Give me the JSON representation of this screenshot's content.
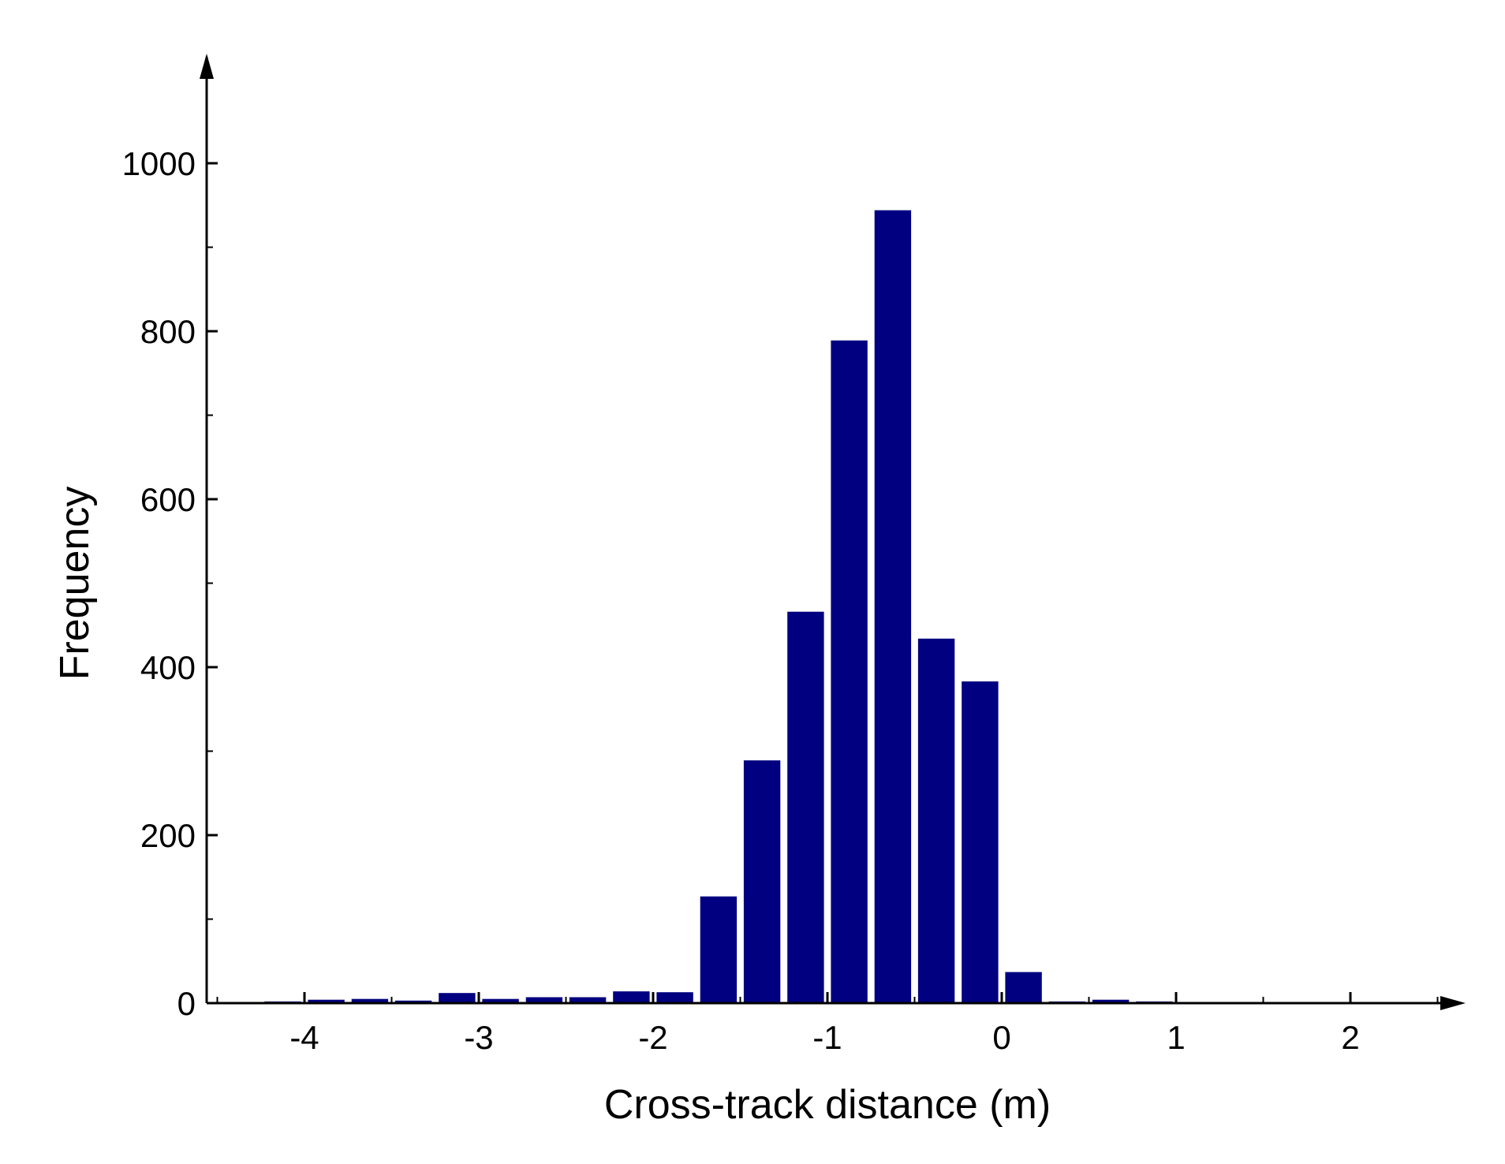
{
  "chart_data": {
    "type": "bar",
    "xlabel": "Cross-track distance (m)",
    "ylabel": "Frequency",
    "xlim": [
      -4.55,
      2.55
    ],
    "ylim": [
      0,
      1100
    ],
    "x_ticks": [
      -4,
      -3,
      -2,
      -1,
      0,
      1,
      2
    ],
    "y_ticks": [
      0,
      200,
      400,
      600,
      800,
      1000
    ],
    "bin_width": 0.25,
    "x": [
      -4.375,
      -4.125,
      -3.875,
      -3.625,
      -3.375,
      -3.125,
      -2.875,
      -2.625,
      -2.375,
      -2.125,
      -1.875,
      -1.625,
      -1.375,
      -1.125,
      -0.875,
      -0.625,
      -0.375,
      -0.125,
      0.125,
      0.375,
      0.625,
      0.875,
      1.125,
      1.375,
      1.625,
      1.875,
      2.125,
      2.375
    ],
    "values": [
      1,
      2,
      4,
      5,
      3,
      12,
      5,
      7,
      7,
      14,
      13,
      127,
      289,
      466,
      789,
      944,
      434,
      383,
      37,
      2,
      4,
      2,
      1,
      1,
      1,
      1,
      1,
      1
    ],
    "bar_color": "#000080",
    "grid": false
  }
}
